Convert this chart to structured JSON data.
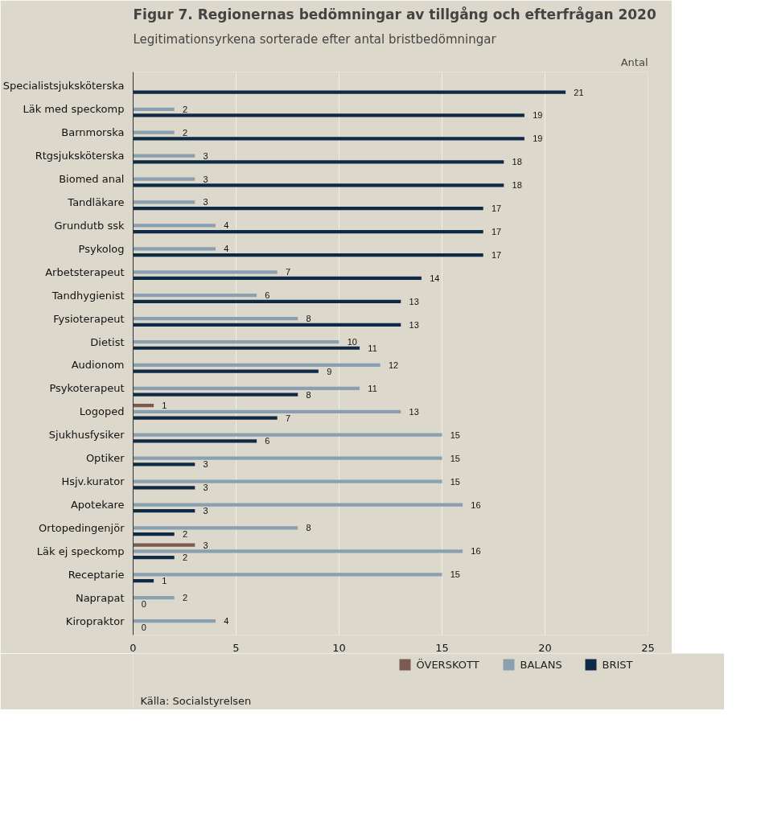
{
  "chart_data": {
    "type": "bar",
    "orientation": "horizontal",
    "title": "Figur 7. Regionernas bedömningar av tillgång och efterfrågan 2020",
    "subtitle": "Legitimationsyrkena sorterade efter antal bristbedömningar",
    "xlabel": "Antal",
    "annotations": [
      "Källa: Socialstyrelsen"
    ],
    "categories": [
      "Specialistsjuksköterska",
      "Läk med speckomp",
      "Barnmorska",
      "Rtgsjuksköterska",
      "Biomed anal",
      "Tandläkare",
      "Grundutb ssk",
      "Psykolog",
      "Arbetsterapeut",
      "Tandhygienist",
      "Fysioterapeut",
      "Dietist",
      "Audionom",
      "Psykoterapeut",
      "Logoped",
      "Sjukhusfysiker",
      "Optiker",
      "Hsjv.kurator",
      "Apotekare",
      "Ortopedingenjör",
      "Läk ej speckomp",
      "Receptarie",
      "Naprapat",
      "Kiropraktor"
    ],
    "series": [
      {
        "name": "ÖVERSKOTT",
        "color": "#7b5a52",
        "values": [
          null,
          null,
          null,
          null,
          null,
          null,
          null,
          null,
          null,
          null,
          null,
          null,
          null,
          null,
          1,
          null,
          null,
          null,
          null,
          null,
          3,
          null,
          null,
          null
        ],
        "value_labels": [
          null,
          null,
          null,
          null,
          null,
          null,
          null,
          null,
          null,
          null,
          null,
          null,
          null,
          null,
          "1",
          null,
          null,
          null,
          null,
          null,
          "3",
          null,
          null,
          null
        ]
      },
      {
        "name": "BALANS",
        "color": "#8a9fb0",
        "values": [
          null,
          2,
          2,
          3,
          3,
          3,
          4,
          4,
          7,
          6,
          8,
          10,
          12,
          11,
          13,
          15,
          15,
          15,
          16,
          8,
          16,
          15,
          2,
          4
        ],
        "value_labels": [
          null,
          "2",
          "2",
          "3",
          "3",
          "3",
          "4",
          "4",
          "7",
          "6",
          "8",
          "10",
          "12",
          "11",
          "13",
          "15",
          "15",
          "15",
          "16",
          "8",
          "16",
          "15",
          "2",
          "4"
        ]
      },
      {
        "name": "BRIST",
        "color": "#0f2a44",
        "values": [
          21,
          19,
          19,
          18,
          18,
          17,
          17,
          17,
          14,
          13,
          13,
          11,
          9,
          8,
          7,
          6,
          3,
          3,
          3,
          2,
          2,
          1,
          0,
          0
        ],
        "value_labels": [
          "21",
          "19",
          "19",
          "18",
          "18",
          "17",
          "17",
          "17",
          "14",
          "13",
          "13",
          "11",
          "9",
          "8",
          "7",
          "6",
          "3",
          "3",
          "3",
          "2",
          "2",
          "1",
          "0",
          "0"
        ]
      }
    ],
    "xlim": [
      0,
      25
    ],
    "xticks": [
      0,
      5,
      10,
      15,
      20,
      25
    ],
    "grid": "x",
    "legend": "bottom"
  }
}
